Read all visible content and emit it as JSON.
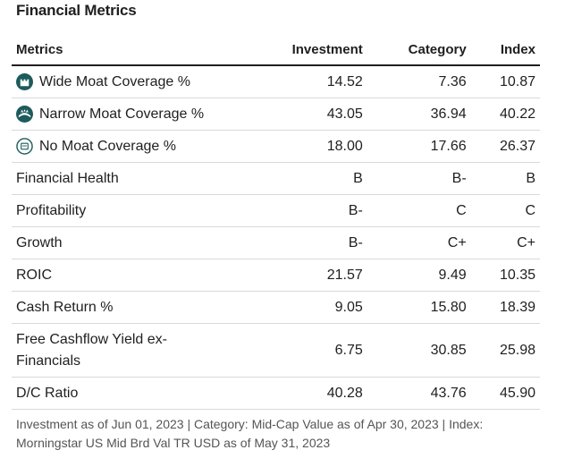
{
  "title": "Financial Metrics",
  "headers": {
    "metric": "Metrics",
    "investment": "Investment",
    "category": "Category",
    "index": "Index"
  },
  "rows": [
    {
      "label": "Wide Moat Coverage %",
      "icon": "wide-moat-icon",
      "investment": "14.52",
      "category": "7.36",
      "index": "10.87"
    },
    {
      "label": "Narrow Moat Coverage %",
      "icon": "narrow-moat-icon",
      "investment": "43.05",
      "category": "36.94",
      "index": "40.22"
    },
    {
      "label": "No Moat Coverage %",
      "icon": "no-moat-icon",
      "investment": "18.00",
      "category": "17.66",
      "index": "26.37"
    },
    {
      "label": "Financial Health",
      "investment": "B",
      "category": "B-",
      "index": "B"
    },
    {
      "label": "Profitability",
      "investment": "B-",
      "category": "C",
      "index": "C"
    },
    {
      "label": "Growth",
      "investment": "B-",
      "category": "C+",
      "index": "C+"
    },
    {
      "label": "ROIC",
      "investment": "21.57",
      "category": "9.49",
      "index": "10.35"
    },
    {
      "label": "Cash Return %",
      "investment": "9.05",
      "category": "15.80",
      "index": "18.39"
    },
    {
      "label": "Free Cashflow Yield ex-Financials",
      "investment": "6.75",
      "category": "30.85",
      "index": "25.98"
    },
    {
      "label": "D/C Ratio",
      "investment": "40.28",
      "category": "43.76",
      "index": "45.90"
    }
  ],
  "footnote": "Investment as of Jun 01, 2023 | Category: Mid-Cap Value as of Apr 30, 2023 | Index: Morningstar US Mid Brd Val TR USD as of May 31, 2023",
  "colors": {
    "moat_icon": "#1e5b5b",
    "text": "#1f1f1f",
    "footnote": "#555555"
  }
}
